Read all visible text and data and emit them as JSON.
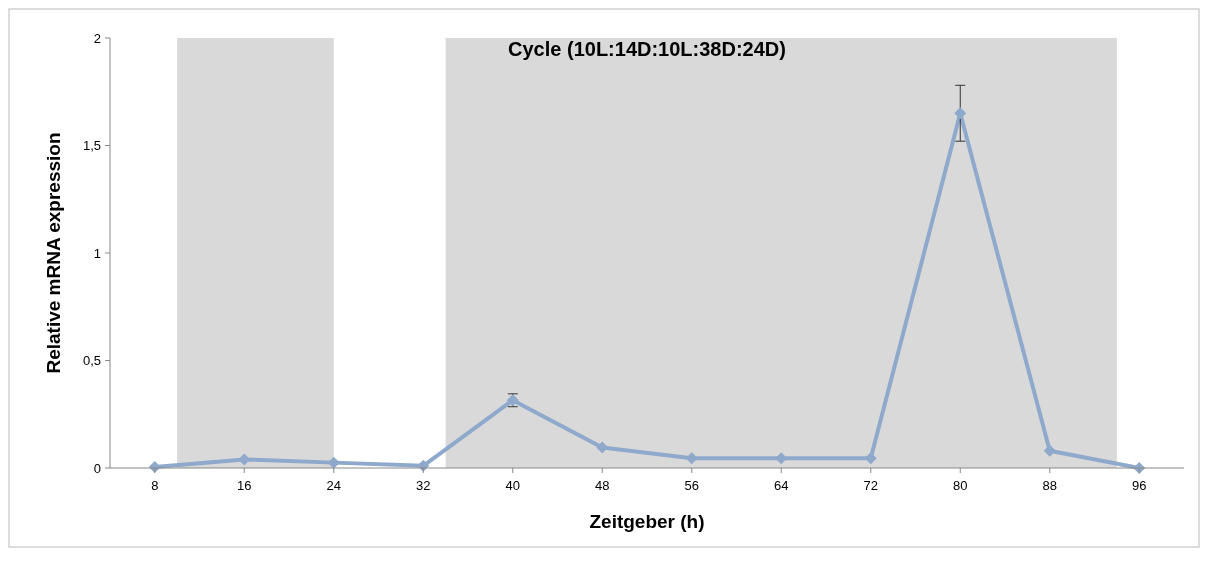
{
  "chart_data": {
    "type": "line",
    "title": "Cycle (10L:14D:10L:38D:24D)",
    "xlabel": "Zeitgeber (h)",
    "ylabel": "Relative mRNA expression",
    "x": [
      8,
      16,
      24,
      32,
      40,
      48,
      56,
      64,
      72,
      80,
      88,
      96
    ],
    "series": [
      {
        "color": "#8ea9cb",
        "values": [
          0.005,
          0.04,
          0.025,
          0.01,
          0.315,
          0.095,
          0.045,
          0.045,
          0.045,
          1.65,
          0.08,
          0.0
        ],
        "errors": [
          null,
          null,
          null,
          null,
          0.03,
          null,
          null,
          null,
          null,
          0.13,
          null,
          null
        ]
      }
    ],
    "xlim": [
      4,
      100
    ],
    "xticks": [
      8,
      16,
      24,
      32,
      40,
      48,
      56,
      64,
      72,
      80,
      88,
      96
    ],
    "ylim": [
      0,
      2
    ],
    "yticks": [
      0,
      {
        "value": 0.5,
        "label": "0,5"
      },
      1,
      {
        "value": 1.5,
        "label": "1,5"
      },
      2
    ],
    "bands": [
      {
        "axis": "x",
        "from": 10,
        "to": 24,
        "color": "#d9d9d9"
      },
      {
        "axis": "x",
        "from": 34,
        "to": 94,
        "color": "#d9d9d9"
      }
    ],
    "marker": "diamond",
    "line_style": "solid",
    "grid": false
  }
}
